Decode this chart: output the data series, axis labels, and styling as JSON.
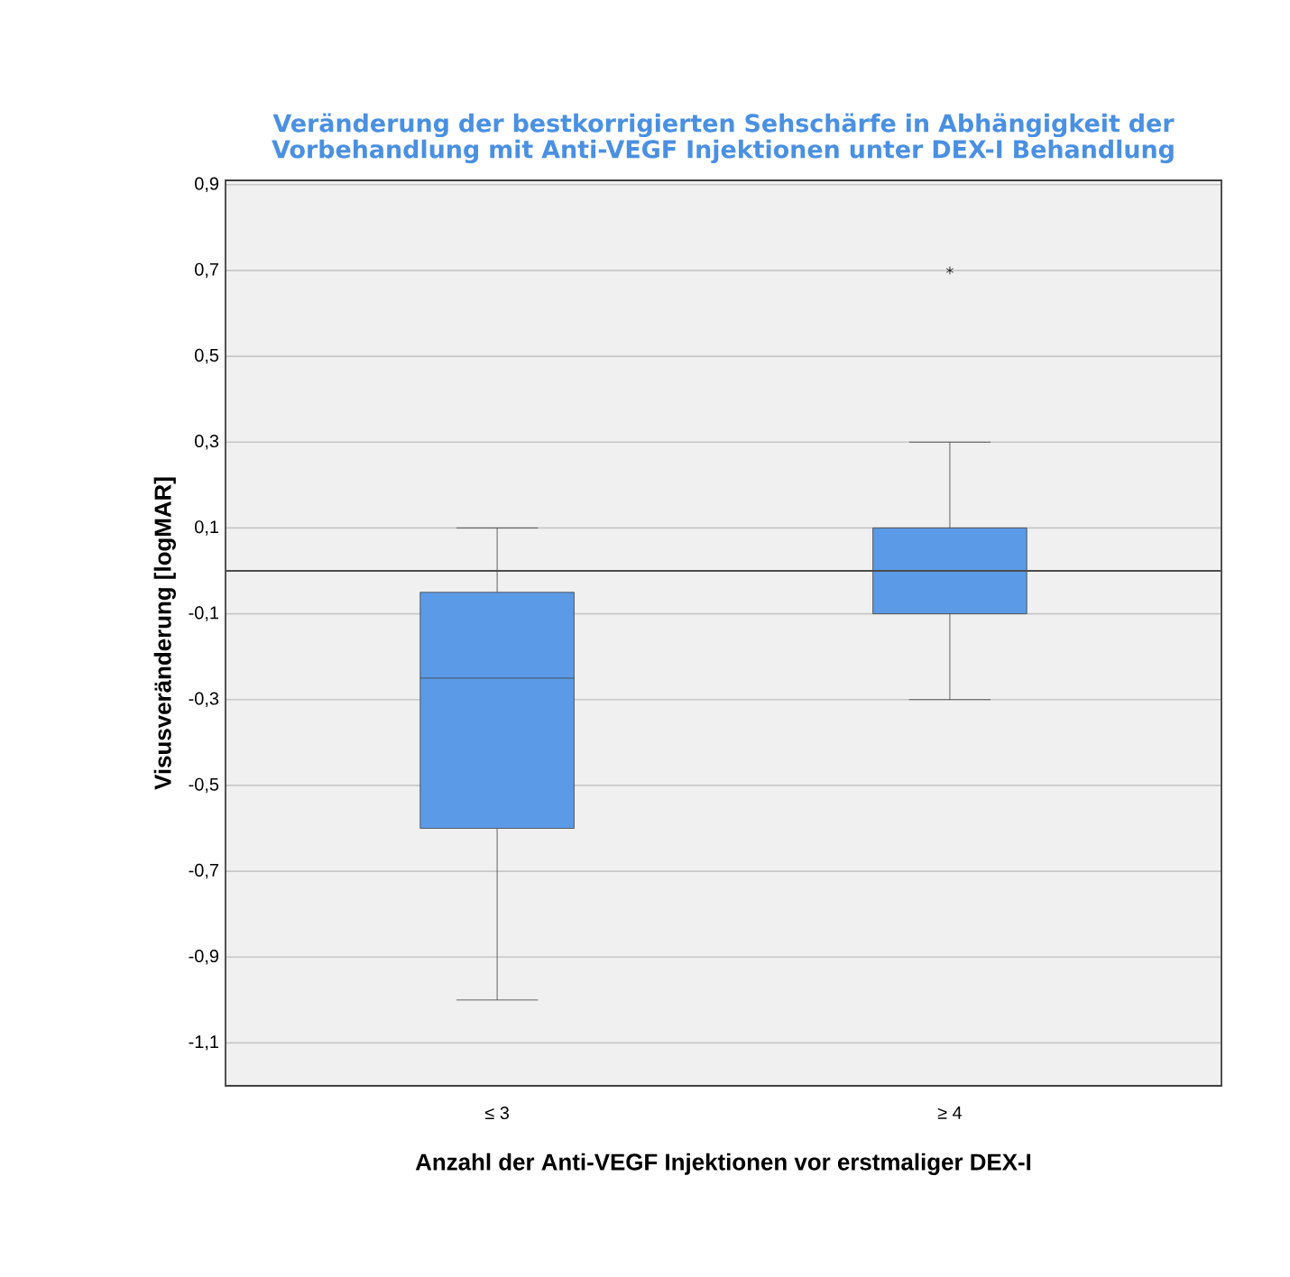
{
  "chart_data": {
    "type": "box",
    "title": "Veränderung der bestkorrigierten Sehschärfe in Abhängigkeit der Vorbehandlung mit Anti-VEGF Injektionen unter DEX-I Behandlung",
    "xlabel": "Anzahl der Anti-VEGF Injektionen vor erstmaliger DEX-I",
    "ylabel": "Visusveränderung [logMAR]",
    "categories": [
      "≤ 3",
      "≥ 4"
    ],
    "boxes": [
      {
        "low": -1.0,
        "q1": -0.6,
        "median": -0.25,
        "q3": -0.05,
        "high": 0.1
      },
      {
        "low": -0.3,
        "q1": -0.1,
        "median": 0.0,
        "q3": 0.1,
        "high": 0.3,
        "outliers": [
          0.7
        ]
      }
    ],
    "color": "#5b9ae6",
    "marker": "star",
    "ylim": [
      -1.2,
      0.91
    ],
    "yticks": [
      {
        "value": 0.9,
        "label": "0,9"
      },
      {
        "value": 0.7,
        "label": "0,7"
      },
      {
        "value": 0.5,
        "label": "0,5"
      },
      {
        "value": 0.3,
        "label": "0,3"
      },
      {
        "value": 0.1,
        "label": "0,1"
      },
      {
        "value": -0.1,
        "label": "-0,1"
      },
      {
        "value": -0.3,
        "label": "-0,3"
      },
      {
        "value": -0.5,
        "label": "-0,5"
      },
      {
        "value": -0.7,
        "label": "-0,7"
      },
      {
        "value": -0.9,
        "label": "-0,9"
      },
      {
        "value": -1.1,
        "label": "-1,1"
      }
    ],
    "grid": "y",
    "ref_lines": [
      {
        "axis": "y",
        "value": 0
      }
    ]
  }
}
